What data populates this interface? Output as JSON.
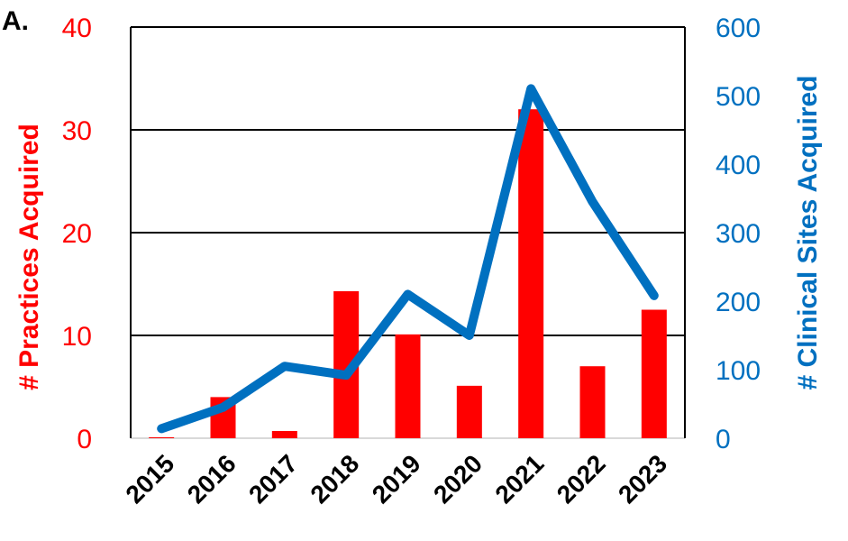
{
  "panel_label": "A.",
  "chart_data": {
    "type": "bar+line",
    "categories": [
      "2015",
      "2016",
      "2017",
      "2018",
      "2019",
      "2020",
      "2021",
      "2022",
      "2023"
    ],
    "series": [
      {
        "name": "# Practices Acquired",
        "type": "bar",
        "axis": "left",
        "values": [
          0,
          4,
          0.7,
          14.3,
          10.1,
          5.1,
          32,
          7,
          12.5
        ]
      },
      {
        "name": "# Clinical Sites Acquired",
        "type": "line",
        "axis": "right",
        "values": [
          14,
          45,
          105,
          92,
          210,
          150,
          510,
          345,
          208
        ]
      }
    ],
    "y_left": {
      "label": "# Practices Acquired",
      "range": [
        0,
        40
      ],
      "ticks": [
        "0",
        "10",
        "20",
        "30",
        "40"
      ]
    },
    "y_right": {
      "label": "# Clinical Sites Acquired",
      "range": [
        0,
        600
      ],
      "ticks": [
        "0",
        "100",
        "200",
        "300",
        "400",
        "500",
        "600"
      ]
    },
    "grid": "horizontal",
    "colors": {
      "bars": "#ff0000",
      "line": "#0070c0",
      "left_axis": "#ff0000",
      "right_axis": "#0070c0"
    }
  }
}
